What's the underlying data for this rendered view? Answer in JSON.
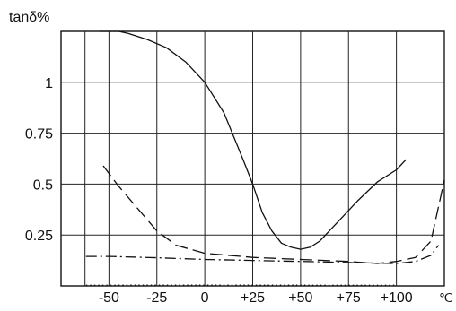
{
  "chart_data": {
    "type": "line",
    "ylabel": "tanδ%",
    "xunit": "℃",
    "x_ticks": [
      {
        "value": -62.5,
        "label": ""
      },
      {
        "value": -50,
        "label": "-50"
      },
      {
        "value": -25,
        "label": "-25"
      },
      {
        "value": 0,
        "label": "0"
      },
      {
        "value": 25,
        "label": "+25"
      },
      {
        "value": 50,
        "label": "+50"
      },
      {
        "value": 75,
        "label": "+75"
      },
      {
        "value": 100,
        "label": "+100"
      },
      {
        "value": 125,
        "label": ""
      }
    ],
    "y_ticks": [
      {
        "value": 0.25,
        "label": "0.25"
      },
      {
        "value": 0.5,
        "label": "0.5"
      },
      {
        "value": 0.75,
        "label": "0.75"
      },
      {
        "value": 1,
        "label": "1"
      }
    ],
    "xlim": [
      -75,
      125
    ],
    "ylim": [
      0,
      1.25
    ],
    "grid": true,
    "series": [
      {
        "style": "solid",
        "x": [
          -55,
          -45,
          -40,
          -30,
          -20,
          -10,
          0,
          10,
          20,
          25,
          30,
          35,
          40,
          45,
          50,
          55,
          60,
          70,
          80,
          90,
          100,
          105
        ],
        "y": [
          1.25,
          1.25,
          1.24,
          1.21,
          1.17,
          1.1,
          1.0,
          0.85,
          0.62,
          0.5,
          0.36,
          0.27,
          0.21,
          0.19,
          0.18,
          0.19,
          0.22,
          0.32,
          0.42,
          0.51,
          0.57,
          0.62
        ]
      },
      {
        "style": "dashed",
        "x": [
          -53,
          -45,
          -35,
          -25,
          -15,
          0,
          25,
          50,
          75,
          90,
          100,
          110,
          118,
          125
        ],
        "y": [
          0.59,
          0.49,
          0.38,
          0.27,
          0.2,
          0.16,
          0.14,
          0.13,
          0.12,
          0.11,
          0.12,
          0.14,
          0.22,
          0.52
        ]
      },
      {
        "style": "dash-dot",
        "x": [
          -62,
          -50,
          -25,
          0,
          25,
          50,
          75,
          100,
          110,
          118,
          122
        ],
        "y": [
          0.145,
          0.145,
          0.138,
          0.13,
          0.125,
          0.12,
          0.115,
          0.11,
          0.12,
          0.15,
          0.2
        ]
      },
      {
        "style": "dotted",
        "x": [
          -62,
          -25,
          25,
          75,
          100
        ],
        "y": [
          0.003,
          0.004,
          0.004,
          0.003,
          0.003
        ]
      }
    ]
  }
}
